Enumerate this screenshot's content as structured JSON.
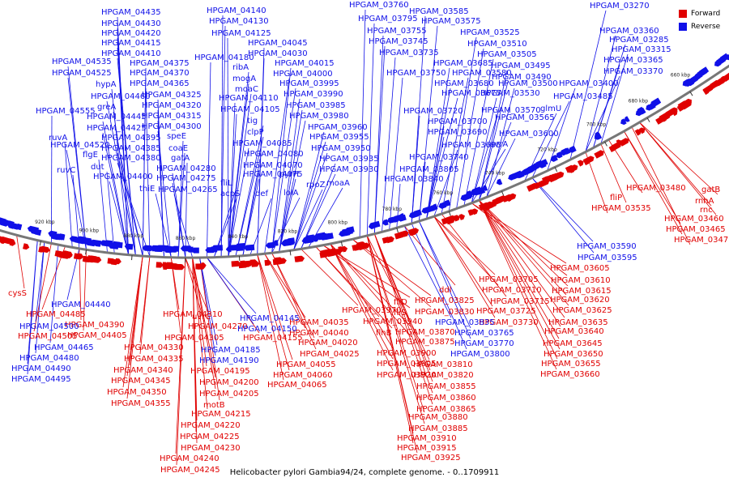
{
  "caption": "Helicobacter pylori Gambia94/24, complete genome. - 0..1709911",
  "colors": {
    "forward": "#e00000",
    "reverse": "#1010e8",
    "backbone": "#777777"
  },
  "legend": [
    {
      "label": "Forward",
      "strand": "forward"
    },
    {
      "label": "Reverse",
      "strand": "reverse"
    }
  ],
  "axis_ticks": [
    {
      "label": "920 kbp",
      "t": 0.065
    },
    {
      "label": "900 kbp",
      "t": 0.13
    },
    {
      "label": "880 kbp",
      "t": 0.195
    },
    {
      "label": "860 kbp",
      "t": 0.27
    },
    {
      "label": "840 kbp",
      "t": 0.345
    },
    {
      "label": "820 kbp",
      "t": 0.415
    },
    {
      "label": "800 kbp",
      "t": 0.485
    },
    {
      "label": "780 kbp",
      "t": 0.56
    },
    {
      "label": "760 kbp",
      "t": 0.63
    },
    {
      "label": "740 kbp",
      "t": 0.7
    },
    {
      "label": "720 kbp",
      "t": 0.77
    },
    {
      "label": "700 kbp",
      "t": 0.835
    },
    {
      "label": "680 kbp",
      "t": 0.89
    },
    {
      "label": "660 kbp",
      "t": 0.945
    }
  ],
  "reverse_labels_upper": [
    {
      "text": "HPGAM_04435",
      "t": 0.2
    },
    {
      "text": "HPGAM_04430",
      "t": 0.2
    },
    {
      "text": "HPGAM_04420",
      "t": 0.2
    },
    {
      "text": "HPGAM_04415",
      "t": 0.2
    },
    {
      "text": "HPGAM_04410",
      "t": 0.2
    },
    {
      "text": "HPGAM_04535",
      "t": 0.2
    },
    {
      "text": "HPGAM_04525",
      "t": 0.2
    },
    {
      "text": "HPGAM_04375",
      "t": 0.2
    },
    {
      "text": "HPGAM_04370",
      "t": 0.2
    },
    {
      "text": "hypA",
      "t": 0.2
    },
    {
      "text": "HPGAM_04365",
      "t": 0.2
    },
    {
      "text": "HPGAM_04460",
      "t": 0.2
    },
    {
      "text": "HPGAM_04325",
      "t": 0.2
    },
    {
      "text": "greA",
      "t": 0.2
    },
    {
      "text": "HPGAM_04320",
      "t": 0.2
    },
    {
      "text": "HPGAM_04445",
      "t": 0.2
    },
    {
      "text": "HPGAM_04315",
      "t": 0.2
    },
    {
      "text": "HPGAM_04555",
      "t": 0.2
    },
    {
      "text": "HPGAM_04425",
      "t": 0.2
    },
    {
      "text": "HPGAM_04300",
      "t": 0.2
    },
    {
      "text": "HPGAM_04395",
      "t": 0.2
    },
    {
      "text": "speE",
      "t": 0.2
    },
    {
      "text": "HPGAM_04520",
      "t": 0.2
    },
    {
      "text": "HPGAM_04385",
      "t": 0.2
    },
    {
      "text": "coaE",
      "t": 0.2
    },
    {
      "text": "flgE",
      "t": 0.2
    },
    {
      "text": "ruvA",
      "t": 0.2
    },
    {
      "text": "HPGAM_04380",
      "t": 0.2
    },
    {
      "text": "gatA",
      "t": 0.2
    },
    {
      "text": "dut",
      "t": 0.2
    },
    {
      "text": "ruvC",
      "t": 0.2
    },
    {
      "text": "HPGAM_04280",
      "t": 0.2
    },
    {
      "text": "HPGAM_04400",
      "t": 0.2
    },
    {
      "text": "HPGAM_04275",
      "t": 0.2
    },
    {
      "text": "thiE",
      "t": 0.2
    },
    {
      "text": "HPGAM_04265",
      "t": 0.2
    },
    {
      "text": "HPGAM_04140",
      "t": 0.2
    },
    {
      "text": "HPGAM_04130",
      "t": 0.2
    },
    {
      "text": "HPGAM_04125",
      "t": 0.2
    },
    {
      "text": "HPGAM_04045",
      "t": 0.2
    },
    {
      "text": "HPGAM_04180",
      "t": 0.2
    },
    {
      "text": "HPGAM_04030",
      "t": 0.2
    },
    {
      "text": "ribA",
      "t": 0.2
    },
    {
      "text": "HPGAM_04015",
      "t": 0.2
    },
    {
      "text": "mogA",
      "t": 0.2
    },
    {
      "text": "HPGAM_04000",
      "t": 0.2
    },
    {
      "text": "moaC",
      "t": 0.2
    },
    {
      "text": "HPGAM_03995",
      "t": 0.2
    },
    {
      "text": "HPGAM_04110",
      "t": 0.2
    },
    {
      "text": "HPGAM_03990",
      "t": 0.2
    },
    {
      "text": "HPGAM_04105",
      "t": 0.2
    },
    {
      "text": "HPGAM_03985",
      "t": 0.2
    },
    {
      "text": "tig",
      "t": 0.2
    },
    {
      "text": "HPGAM_03980",
      "t": 0.2
    },
    {
      "text": "clpP",
      "t": 0.2
    },
    {
      "text": "HPGAM_03960",
      "t": 0.2
    },
    {
      "text": "HPGAM_03955",
      "t": 0.2
    },
    {
      "text": "HPGAM_04085",
      "t": 0.2
    },
    {
      "text": "HPGAM_03950",
      "t": 0.2
    },
    {
      "text": "HPGAM_04080",
      "t": 0.2
    },
    {
      "text": "HPGAM_04070",
      "t": 0.2
    },
    {
      "text": "HPGAM_03935",
      "t": 0.2
    },
    {
      "text": "HPGAM_04075",
      "t": 0.2
    },
    {
      "text": "pyrH",
      "t": 0.2
    },
    {
      "text": "HPGAM_03930",
      "t": 0.2
    },
    {
      "text": "fliL",
      "t": 0.2
    },
    {
      "text": "rpoZ",
      "t": 0.2
    },
    {
      "text": "moaA",
      "t": 0.2
    },
    {
      "text": "acpS",
      "t": 0.2
    },
    {
      "text": "def",
      "t": 0.2
    },
    {
      "text": "lolA",
      "t": 0.2
    },
    {
      "text": "HPGAM_03760",
      "t": 0.2
    },
    {
      "text": "HPGAM_03585",
      "t": 0.2
    },
    {
      "text": "HPGAM_03795",
      "t": 0.2
    },
    {
      "text": "HPGAM_03575",
      "t": 0.2
    },
    {
      "text": "HPGAM_03755",
      "t": 0.2
    },
    {
      "text": "HPGAM_03525",
      "t": 0.2
    },
    {
      "text": "HPGAM_03745",
      "t": 0.2
    },
    {
      "text": "HPGAM_03510",
      "t": 0.2
    },
    {
      "text": "HPGAM_03735",
      "t": 0.2
    },
    {
      "text": "HPGAM_03505",
      "t": 0.2
    },
    {
      "text": "HPGAM_03685",
      "t": 0.2
    },
    {
      "text": "HPGAM_03495",
      "t": 0.2
    },
    {
      "text": "HPGAM_03750",
      "t": 0.2
    },
    {
      "text": "HPGAM_03580",
      "t": 0.2
    },
    {
      "text": "HPGAM_03490",
      "t": 0.2
    },
    {
      "text": "HPGAM_03680",
      "t": 0.2
    },
    {
      "text": "HPGAM_03500",
      "t": 0.2
    },
    {
      "text": "HPGAM_03675",
      "t": 0.2
    },
    {
      "text": "HPGAM_03530",
      "t": 0.2
    },
    {
      "text": "HPGAM_03485",
      "t": 0.2
    },
    {
      "text": "HPGAM_03720",
      "t": 0.2
    },
    {
      "text": "HPGAM_03570",
      "t": 0.2
    },
    {
      "text": "glmU",
      "t": 0.2
    },
    {
      "text": "HPGAM_03700",
      "t": 0.2
    },
    {
      "text": "HPGAM_03565",
      "t": 0.2
    },
    {
      "text": "HPGAM_03690",
      "t": 0.2
    },
    {
      "text": "HPGAM_03600",
      "t": 0.2
    },
    {
      "text": "HPGAM_03695",
      "t": 0.2
    },
    {
      "text": "uvrA",
      "t": 0.2
    },
    {
      "text": "HPGAM_03740",
      "t": 0.2
    },
    {
      "text": "HPGAM_03805",
      "t": 0.2
    },
    {
      "text": "HPGAM_03840",
      "t": 0.2
    },
    {
      "text": "HPGAM_03270",
      "t": 0.2
    },
    {
      "text": "HPGAM_03360",
      "t": 0.2
    },
    {
      "text": "HPGAM_03285",
      "t": 0.2
    },
    {
      "text": "HPGAM_03315",
      "t": 0.2
    },
    {
      "text": "HPGAM_03365",
      "t": 0.2
    },
    {
      "text": "HPGAM_03370",
      "t": 0.2
    },
    {
      "text": "HPGAM_03400",
      "t": 0.2
    }
  ],
  "forward_labels_upper": [
    {
      "text": "HPGAM_03480",
      "t": 0.2
    },
    {
      "text": "gatB",
      "t": 0.2
    },
    {
      "text": "fliP",
      "t": 0.2
    },
    {
      "text": "rnhA",
      "t": 0.2
    },
    {
      "text": "HPGAM_03535",
      "t": 0.2
    },
    {
      "text": "rnc",
      "t": 0.2
    },
    {
      "text": "HPGAM_03460",
      "t": 0.2
    },
    {
      "text": "HPGAM_03465",
      "t": 0.2
    },
    {
      "text": "HPGAM_03475",
      "t": 0.2
    }
  ],
  "forward_labels_lower": [
    {
      "text": "cysS",
      "t": 0.2
    },
    {
      "text": "HPGAM_04485",
      "t": 0.2
    },
    {
      "text": "HPGAM_04505",
      "t": 0.2
    },
    {
      "text": "HPGAM_04390",
      "t": 0.2
    },
    {
      "text": "HPGAM_04405",
      "t": 0.2
    },
    {
      "text": "HPGAM_04310",
      "t": 0.2
    },
    {
      "text": "HPGAM_04305",
      "t": 0.2
    },
    {
      "text": "HPGAM_04330",
      "t": 0.2
    },
    {
      "text": "HPGAM_04335",
      "t": 0.2
    },
    {
      "text": "HPGAM_04340",
      "t": 0.2
    },
    {
      "text": "HPGAM_04345",
      "t": 0.2
    },
    {
      "text": "HPGAM_04350",
      "t": 0.2
    },
    {
      "text": "HPGAM_04355",
      "t": 0.2
    },
    {
      "text": "uvrC",
      "t": 0.2
    },
    {
      "text": "HPGAM_04270",
      "t": 0.2
    },
    {
      "text": "HPGAM_04155",
      "t": 0.2
    },
    {
      "text": "HPGAM_04195",
      "t": 0.2
    },
    {
      "text": "HPGAM_04200",
      "t": 0.2
    },
    {
      "text": "HPGAM_04205",
      "t": 0.2
    },
    {
      "text": "motB",
      "t": 0.2
    },
    {
      "text": "HPGAM_04215",
      "t": 0.2
    },
    {
      "text": "HPGAM_04220",
      "t": 0.2
    },
    {
      "text": "HPGAM_04225",
      "t": 0.2
    },
    {
      "text": "HPGAM_04230",
      "t": 0.2
    },
    {
      "text": "HPGAM_04240",
      "t": 0.2
    },
    {
      "text": "HPGAM_04245",
      "t": 0.2
    },
    {
      "text": "HPGAM_04035",
      "t": 0.2
    },
    {
      "text": "HPGAM_04040",
      "t": 0.2
    },
    {
      "text": "HPGAM_04020",
      "t": 0.2
    },
    {
      "text": "HPGAM_04025",
      "t": 0.2
    },
    {
      "text": "HPGAM_04055",
      "t": 0.2
    },
    {
      "text": "HPGAM_04060",
      "t": 0.2
    },
    {
      "text": "HPGAM_04065",
      "t": 0.2
    },
    {
      "text": "HPGAM_03970",
      "t": 0.2
    },
    {
      "text": "flhB",
      "t": 0.2
    },
    {
      "text": "fliD",
      "t": 0.2
    },
    {
      "text": "fliS",
      "t": 0.2
    },
    {
      "text": "HPGAM_03940",
      "t": 0.2
    },
    {
      "text": "HPGAM_03825",
      "t": 0.2
    },
    {
      "text": "HPGAM_03830",
      "t": 0.2
    },
    {
      "text": "HPGAM_03870",
      "t": 0.2
    },
    {
      "text": "HPGAM_03875",
      "t": 0.2
    },
    {
      "text": "HPGAM_03900",
      "t": 0.2
    },
    {
      "text": "HPGAM_03905",
      "t": 0.2
    },
    {
      "text": "HPGAM_03920",
      "t": 0.2
    },
    {
      "text": "HPGAM_03810",
      "t": 0.2
    },
    {
      "text": "HPGAM_03820",
      "t": 0.2
    },
    {
      "text": "HPGAM_03855",
      "t": 0.2
    },
    {
      "text": "HPGAM_03860",
      "t": 0.2
    },
    {
      "text": "HPGAM_03865",
      "t": 0.2
    },
    {
      "text": "HPGAM_03880",
      "t": 0.2
    },
    {
      "text": "HPGAM_03885",
      "t": 0.2
    },
    {
      "text": "HPGAM_03910",
      "t": 0.2
    },
    {
      "text": "HPGAM_03915",
      "t": 0.2
    },
    {
      "text": "HPGAM_03925",
      "t": 0.2
    },
    {
      "text": "ddl",
      "t": 0.2
    },
    {
      "text": "HPGAM_03705",
      "t": 0.2
    },
    {
      "text": "HPGAM_03710",
      "t": 0.2
    },
    {
      "text": "HPGAM_03715",
      "t": 0.2
    },
    {
      "text": "HPGAM_03725",
      "t": 0.2
    },
    {
      "text": "HPGAM_03730",
      "t": 0.2
    },
    {
      "text": "HPGAM_03605",
      "t": 0.2
    },
    {
      "text": "HPGAM_03610",
      "t": 0.2
    },
    {
      "text": "HPGAM_03615",
      "t": 0.2
    },
    {
      "text": "HPGAM_03620",
      "t": 0.2
    },
    {
      "text": "HPGAM_03625",
      "t": 0.2
    },
    {
      "text": "HPGAM_03635",
      "t": 0.2
    },
    {
      "text": "HPGAM_03640",
      "t": 0.2
    },
    {
      "text": "HPGAM_03645",
      "t": 0.2
    },
    {
      "text": "HPGAM_03650",
      "t": 0.2
    },
    {
      "text": "HPGAM_03655",
      "t": 0.2
    },
    {
      "text": "HPGAM_03660",
      "t": 0.2
    }
  ],
  "reverse_labels_lower": [
    {
      "text": "HPGAM_04440",
      "t": 0.2
    },
    {
      "text": "HPGAM_04500",
      "t": 0.2
    },
    {
      "text": "HPGAM_04465",
      "t": 0.2
    },
    {
      "text": "HPGAM_04480",
      "t": 0.2
    },
    {
      "text": "HPGAM_04490",
      "t": 0.2
    },
    {
      "text": "HPGAM_04495",
      "t": 0.2
    },
    {
      "text": "HPGAM_04145",
      "t": 0.2
    },
    {
      "text": "HPGAM_04150",
      "t": 0.2
    },
    {
      "text": "HPGAM_04185",
      "t": 0.2
    },
    {
      "text": "HPGAM_04190",
      "t": 0.2
    },
    {
      "text": "HPGAM_03835",
      "t": 0.2
    },
    {
      "text": "HPGAM_03765",
      "t": 0.2
    },
    {
      "text": "HPGAM_03770",
      "t": 0.2
    },
    {
      "text": "HPGAM_03800",
      "t": 0.2
    },
    {
      "text": "HPGAM_03590",
      "t": 0.2
    },
    {
      "text": "HPGAM_03595",
      "t": 0.2
    }
  ]
}
